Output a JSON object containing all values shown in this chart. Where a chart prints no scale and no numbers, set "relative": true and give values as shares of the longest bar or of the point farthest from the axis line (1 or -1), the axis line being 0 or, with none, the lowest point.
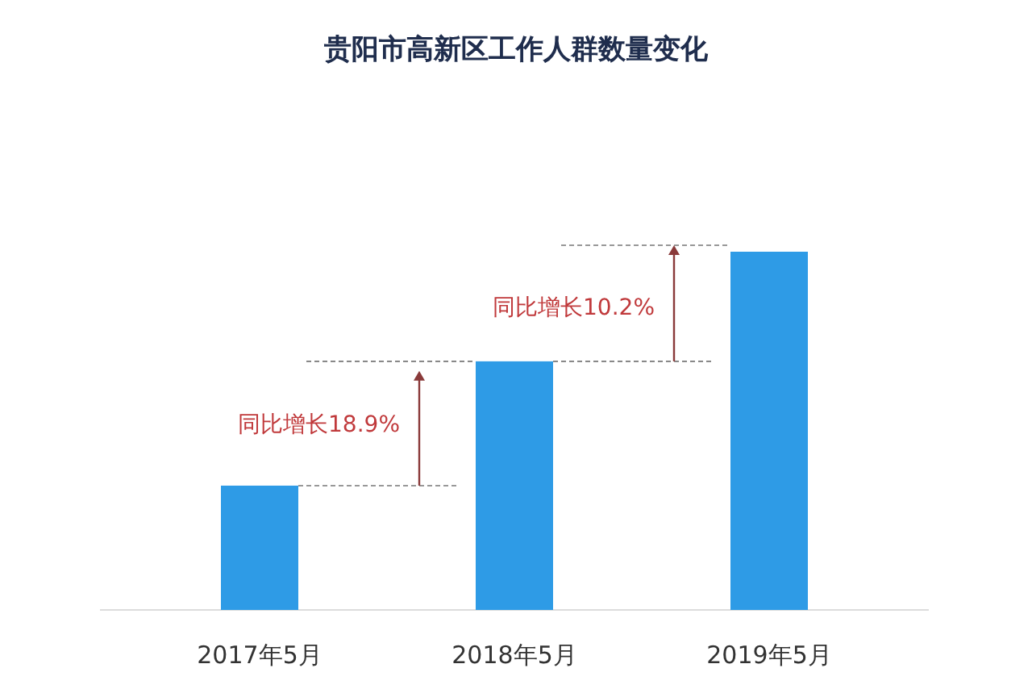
{
  "chart_data": {
    "type": "bar",
    "title": "贵阳市高新区工作人群数量变化",
    "categories": [
      "2017年5月",
      "2018年5月",
      "2019年5月"
    ],
    "values": [
      0.347,
      0.694,
      1
    ],
    "color": "#2e9be6",
    "relative": true,
    "annotations": [
      "同比增长18.9%",
      "同比增长10.2%"
    ]
  }
}
